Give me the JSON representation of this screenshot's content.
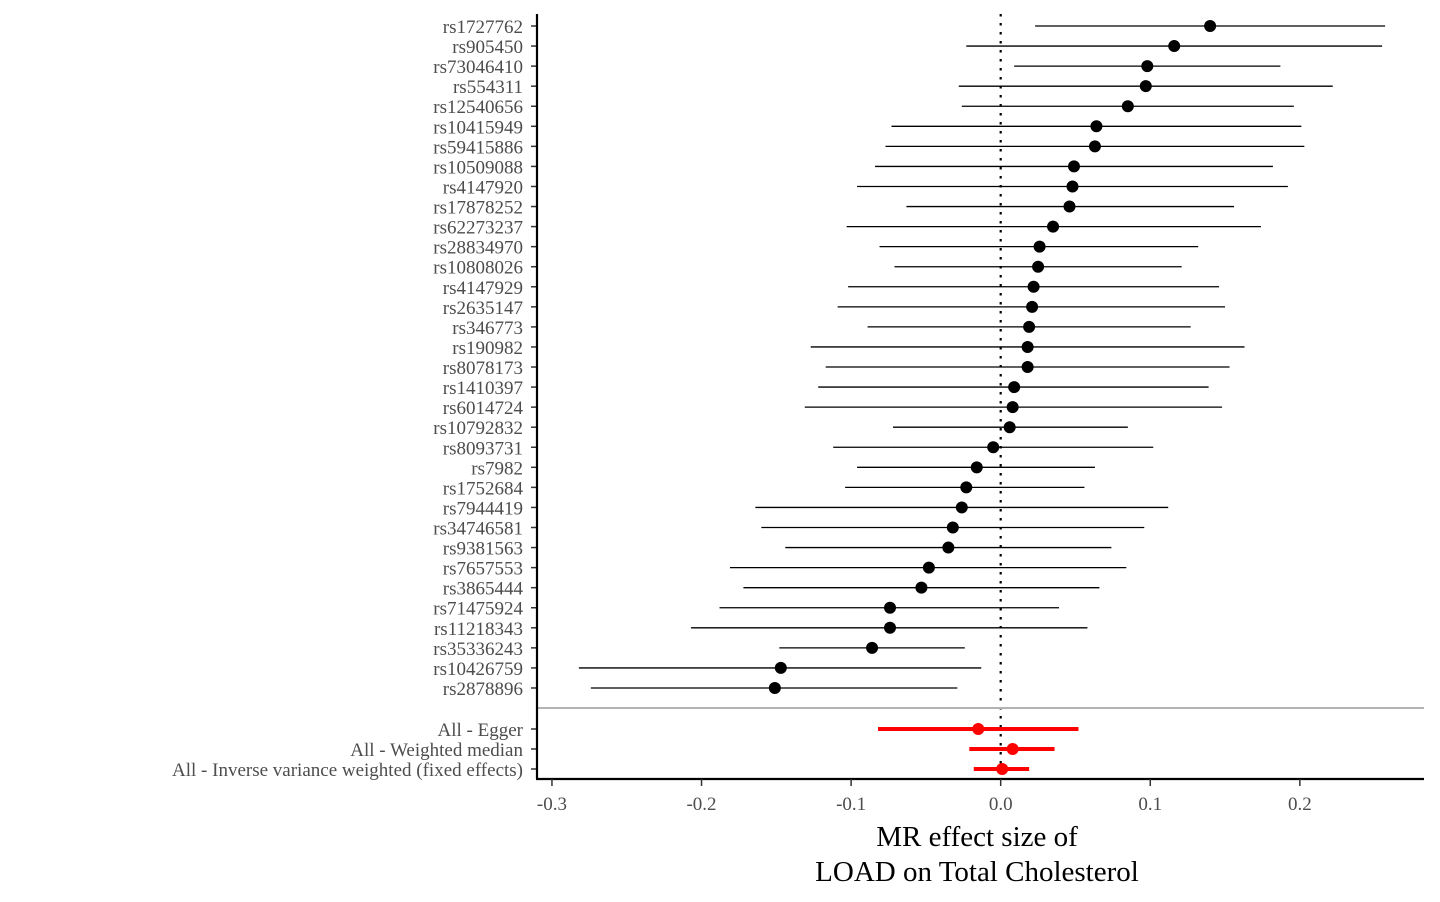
{
  "chart_data": {
    "type": "scatter",
    "subtype": "forest-plot",
    "xlabel": [
      "MR effect size of",
      "LOAD on Total Cholesterol"
    ],
    "xlim": [
      -0.31,
      0.283
    ],
    "xticks": [
      -0.3,
      -0.2,
      -0.1,
      0.0,
      0.1,
      0.2
    ],
    "xtick_labels": [
      "-0.3",
      "-0.2",
      "-0.1",
      "0.0",
      "0.1",
      "0.2"
    ],
    "reference_line": 0,
    "grid": false,
    "point_color": "#000000",
    "summary_color": "#ff0000",
    "divider_color": "#b3b3b3",
    "snps": [
      {
        "label": "rs1727762",
        "b": 0.14,
        "lo": 0.023,
        "hi": 0.257
      },
      {
        "label": "rs905450",
        "b": 0.116,
        "lo": -0.023,
        "hi": 0.255
      },
      {
        "label": "rs73046410",
        "b": 0.098,
        "lo": 0.009,
        "hi": 0.187
      },
      {
        "label": "rs554311",
        "b": 0.097,
        "lo": -0.028,
        "hi": 0.222
      },
      {
        "label": "rs12540656",
        "b": 0.085,
        "lo": -0.026,
        "hi": 0.196
      },
      {
        "label": "rs10415949",
        "b": 0.064,
        "lo": -0.073,
        "hi": 0.201
      },
      {
        "label": "rs59415886",
        "b": 0.063,
        "lo": -0.077,
        "hi": 0.203
      },
      {
        "label": "rs10509088",
        "b": 0.049,
        "lo": -0.084,
        "hi": 0.182
      },
      {
        "label": "rs4147920",
        "b": 0.048,
        "lo": -0.096,
        "hi": 0.192
      },
      {
        "label": "rs17878252",
        "b": 0.046,
        "lo": -0.063,
        "hi": 0.156
      },
      {
        "label": "rs62273237",
        "b": 0.035,
        "lo": -0.103,
        "hi": 0.174
      },
      {
        "label": "rs28834970",
        "b": 0.026,
        "lo": -0.081,
        "hi": 0.132
      },
      {
        "label": "rs10808026",
        "b": 0.025,
        "lo": -0.071,
        "hi": 0.121
      },
      {
        "label": "rs4147929",
        "b": 0.022,
        "lo": -0.102,
        "hi": 0.146
      },
      {
        "label": "rs2635147",
        "b": 0.021,
        "lo": -0.109,
        "hi": 0.15
      },
      {
        "label": "rs346773",
        "b": 0.019,
        "lo": -0.089,
        "hi": 0.127
      },
      {
        "label": "rs190982",
        "b": 0.018,
        "lo": -0.127,
        "hi": 0.163
      },
      {
        "label": "rs8078173",
        "b": 0.018,
        "lo": -0.117,
        "hi": 0.153
      },
      {
        "label": "rs1410397",
        "b": 0.009,
        "lo": -0.122,
        "hi": 0.139
      },
      {
        "label": "rs6014724",
        "b": 0.008,
        "lo": -0.131,
        "hi": 0.148
      },
      {
        "label": "rs10792832",
        "b": 0.006,
        "lo": -0.072,
        "hi": 0.085
      },
      {
        "label": "rs8093731",
        "b": -0.005,
        "lo": -0.112,
        "hi": 0.102
      },
      {
        "label": "rs7982",
        "b": -0.016,
        "lo": -0.096,
        "hi": 0.063
      },
      {
        "label": "rs1752684",
        "b": -0.023,
        "lo": -0.104,
        "hi": 0.056
      },
      {
        "label": "rs7944419",
        "b": -0.026,
        "lo": -0.164,
        "hi": 0.112
      },
      {
        "label": "rs34746581",
        "b": -0.032,
        "lo": -0.16,
        "hi": 0.096
      },
      {
        "label": "rs9381563",
        "b": -0.035,
        "lo": -0.144,
        "hi": 0.074
      },
      {
        "label": "rs7657553",
        "b": -0.048,
        "lo": -0.181,
        "hi": 0.084
      },
      {
        "label": "rs3865444",
        "b": -0.053,
        "lo": -0.172,
        "hi": 0.066
      },
      {
        "label": "rs71475924",
        "b": -0.074,
        "lo": -0.188,
        "hi": 0.039
      },
      {
        "label": "rs11218343",
        "b": -0.074,
        "lo": -0.207,
        "hi": 0.058
      },
      {
        "label": "rs35336243",
        "b": -0.086,
        "lo": -0.148,
        "hi": -0.024
      },
      {
        "label": "rs10426759",
        "b": -0.147,
        "lo": -0.282,
        "hi": -0.013
      },
      {
        "label": "rs2878896",
        "b": -0.151,
        "lo": -0.274,
        "hi": -0.029
      }
    ],
    "summary": [
      {
        "label": "All - Egger",
        "b": -0.015,
        "lo": -0.082,
        "hi": 0.052
      },
      {
        "label": "All - Weighted median",
        "b": 0.008,
        "lo": -0.021,
        "hi": 0.036
      },
      {
        "label": "All - Inverse variance weighted (fixed effects)",
        "b": 0.001,
        "lo": -0.018,
        "hi": 0.019
      }
    ]
  }
}
